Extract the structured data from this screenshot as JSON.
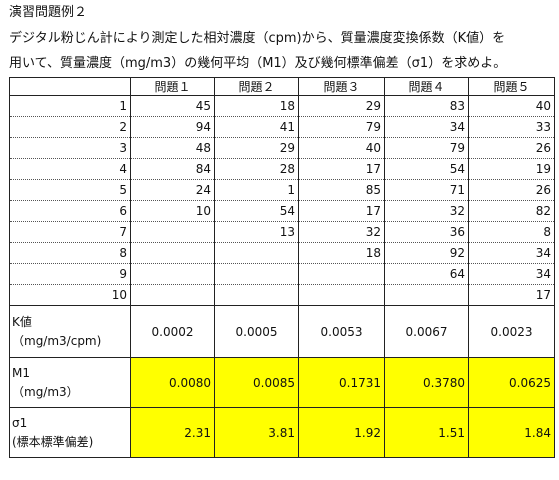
{
  "title": "演習問題例２",
  "description_line1": "デジタル粉じん計により測定した相対濃度（cpm)から、質量濃度変換係数（K値）を",
  "description_line2": "用いて、質量濃度（mg/m3）の幾何平均（M1）及び幾何標準偏差（σ1）を求めよ。",
  "table": {
    "headers": [
      "",
      "問題１",
      "問題２",
      "問題３",
      "問題４",
      "問題５"
    ],
    "rows": [
      {
        "index": "1",
        "values": [
          "45",
          "18",
          "29",
          "83",
          "40"
        ]
      },
      {
        "index": "2",
        "values": [
          "94",
          "41",
          "79",
          "34",
          "33"
        ]
      },
      {
        "index": "3",
        "values": [
          "48",
          "29",
          "40",
          "79",
          "26"
        ]
      },
      {
        "index": "4",
        "values": [
          "84",
          "28",
          "17",
          "54",
          "19"
        ]
      },
      {
        "index": "5",
        "values": [
          "24",
          "1",
          "85",
          "71",
          "26"
        ]
      },
      {
        "index": "6",
        "values": [
          "10",
          "54",
          "17",
          "32",
          "82"
        ]
      },
      {
        "index": "7",
        "values": [
          "",
          "13",
          "32",
          "36",
          "8"
        ]
      },
      {
        "index": "8",
        "values": [
          "",
          "",
          "18",
          "92",
          "34"
        ]
      },
      {
        "index": "9",
        "values": [
          "",
          "",
          "",
          "64",
          "34"
        ]
      },
      {
        "index": "10",
        "values": [
          "",
          "",
          "",
          "",
          "17"
        ]
      }
    ],
    "k_value": {
      "label_line1": "K値",
      "label_line2": "（mg/m3/cpm)",
      "values": [
        "0.0002",
        "0.0005",
        "0.0053",
        "0.0067",
        "0.0023"
      ]
    },
    "m1": {
      "label_line1": "M1",
      "label_line2": "（mg/m3）",
      "values": [
        "0.0080",
        "0.0085",
        "0.1731",
        "0.3780",
        "0.0625"
      ]
    },
    "sigma1": {
      "label_line1": "σ1",
      "label_line2": "(標本標準偏差)",
      "values": [
        "2.31",
        "3.81",
        "1.92",
        "1.51",
        "1.84"
      ]
    }
  },
  "colors": {
    "highlight": "#ffff00",
    "border": "#222222"
  }
}
